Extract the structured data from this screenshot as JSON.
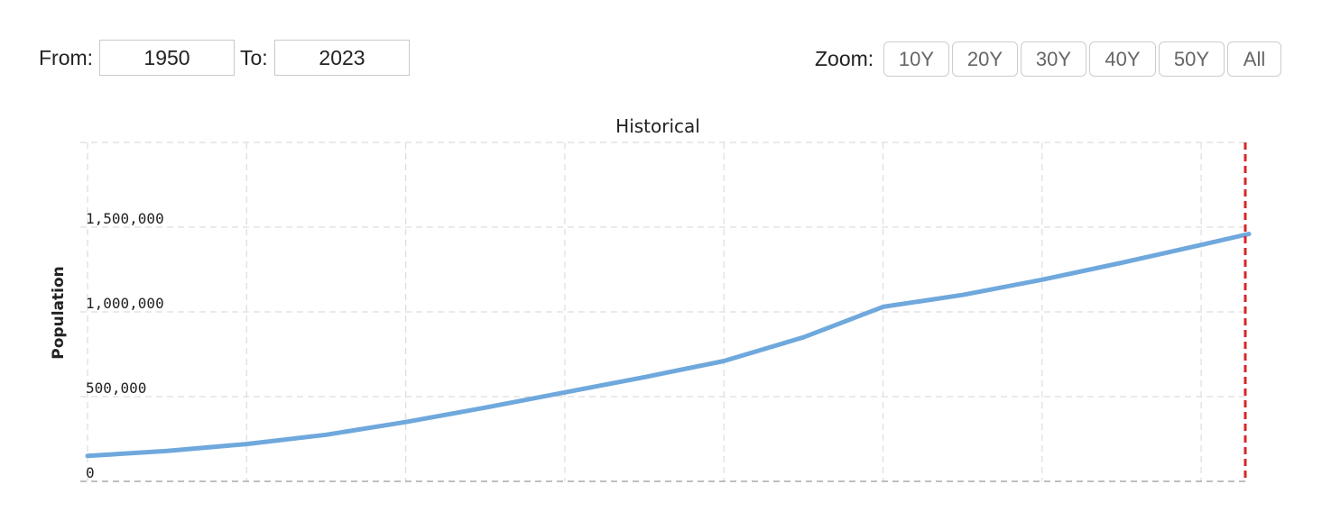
{
  "range": {
    "from_label": "From:",
    "from_value": "1950",
    "to_label": "To:",
    "to_value": "2023"
  },
  "zoom": {
    "label": "Zoom:",
    "buttons": [
      "10Y",
      "20Y",
      "30Y",
      "40Y",
      "50Y",
      "All"
    ]
  },
  "colors": {
    "line": "#6fa8dc",
    "current_year_marker": "#d62728",
    "grid": "#dddddd"
  },
  "chart_data": {
    "type": "line",
    "title": "Historical",
    "xlabel": "",
    "ylabel": "Population",
    "xlim": [
      1950,
      2023
    ],
    "ylim": [
      0,
      2000000
    ],
    "yticks": [
      0,
      500000,
      1000000,
      1500000
    ],
    "ytick_labels": [
      "0",
      "500,000",
      "1,000,000",
      "1,500,000"
    ],
    "grid": true,
    "marker_x": 2023,
    "series": [
      {
        "x": [
          1950,
          1955,
          1960,
          1965,
          1970,
          1975,
          1980,
          1985,
          1990,
          1995,
          2000,
          2005,
          2010,
          2015,
          2020,
          2023
        ],
        "values": [
          150000,
          180000,
          220000,
          275000,
          350000,
          435000,
          525000,
          615000,
          710000,
          850000,
          1030000,
          1100000,
          1190000,
          1290000,
          1395000,
          1460000
        ]
      }
    ]
  }
}
